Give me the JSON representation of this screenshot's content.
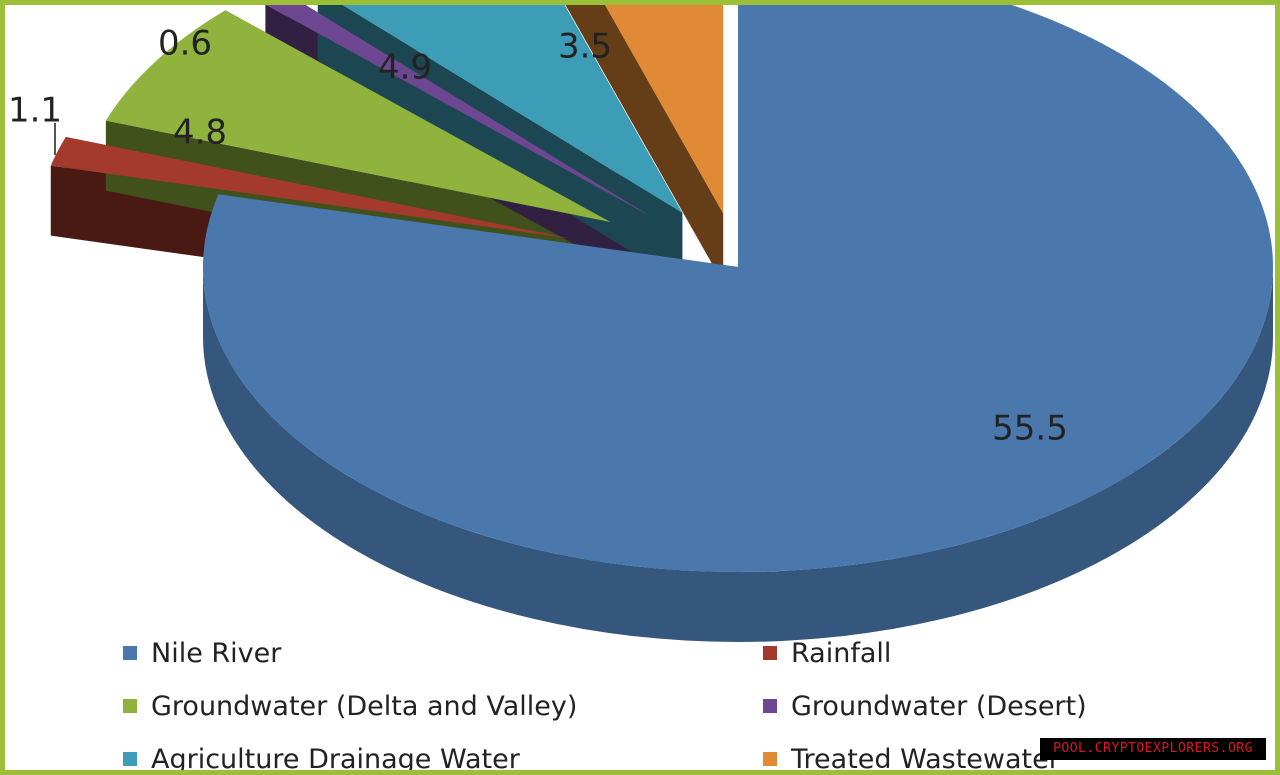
{
  "chart_data": {
    "type": "pie",
    "style": "3d-exploded",
    "title": "",
    "slices": [
      {
        "label": "Nile River",
        "value": 55.5,
        "color": "#4a78ad"
      },
      {
        "label": "Rainfall",
        "value": 1.1,
        "color": "#a33a2c"
      },
      {
        "label": "Groundwater (Delta and Valley)",
        "value": 4.8,
        "color": "#8fb33c"
      },
      {
        "label": "Groundwater (Desert)",
        "value": 0.6,
        "color": "#6e4793"
      },
      {
        "label": "Agriculture Drainage Water",
        "value": 4.9,
        "color": "#3e9db6"
      },
      {
        "label": "Treated Wastewater",
        "value": 3.5,
        "color": "#e08a36"
      }
    ],
    "legend_position": "bottom",
    "data_labels": [
      "55.5",
      "1.1",
      "4.8",
      "0.6",
      "4.9",
      "3.5"
    ]
  },
  "watermark": "POOL.CRYPTOEXPLORERS.ORG",
  "colors": {
    "frame_border": "#9cbf3a",
    "watermark_bg": "#000000",
    "watermark_text": "#e0161c"
  }
}
